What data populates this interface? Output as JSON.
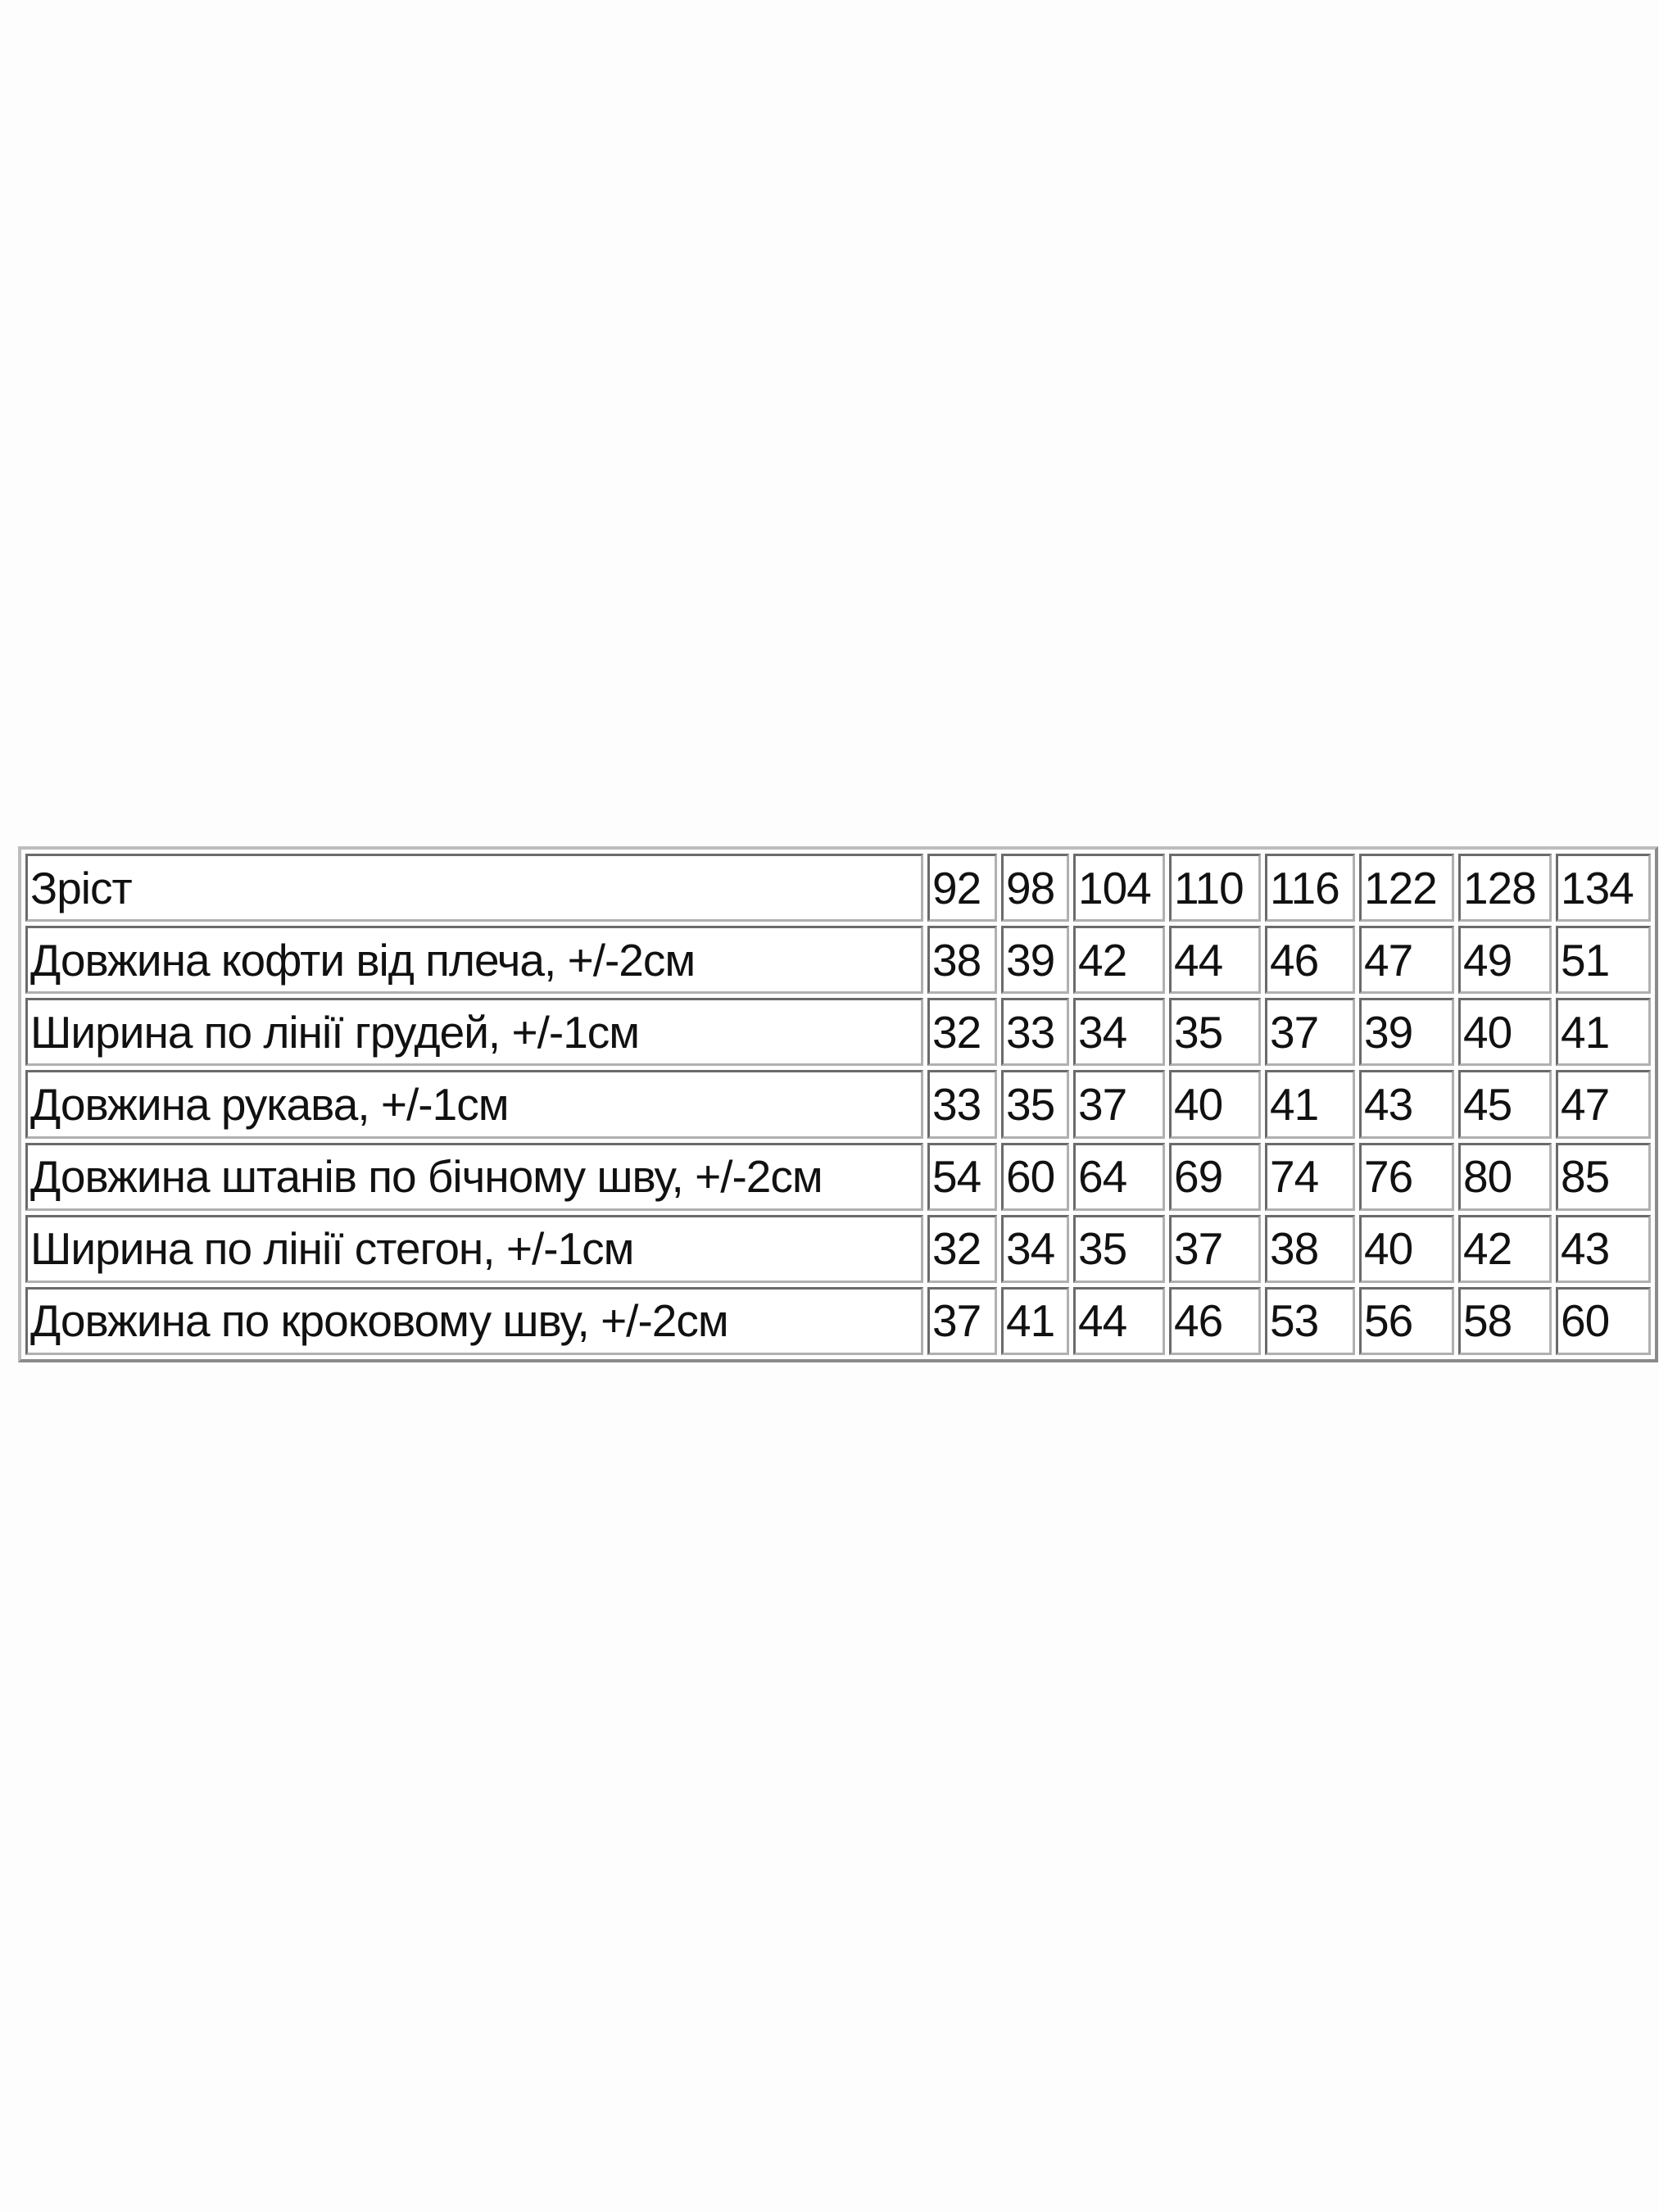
{
  "table": {
    "header": {
      "label": "Зріст",
      "sizes": [
        "92",
        "98",
        "104",
        "110",
        "116",
        "122",
        "128",
        "134"
      ]
    },
    "rows": [
      {
        "label": "Довжина кофти від плеча, +/-2см",
        "values": [
          "38",
          "39",
          "42",
          "44",
          "46",
          "47",
          "49",
          "51"
        ]
      },
      {
        "label": "Ширина по лінії грудей, +/-1см",
        "values": [
          "32",
          "33",
          "34",
          "35",
          "37",
          "39",
          "40",
          "41"
        ]
      },
      {
        "label": "Довжина рукава, +/-1см",
        "values": [
          "33",
          "35",
          "37",
          "40",
          "41",
          "43",
          "45",
          "47"
        ]
      },
      {
        "label": "Довжина штанів по бічному шву, +/-2см",
        "values": [
          "54",
          "60",
          "64",
          "69",
          "74",
          "76",
          "80",
          "85"
        ]
      },
      {
        "label": "Ширина по лінії стегон, +/-1см",
        "values": [
          "32",
          "34",
          "35",
          "37",
          "38",
          "40",
          "42",
          "43"
        ]
      },
      {
        "label": "Довжина по кроковому шву, +/-2см",
        "values": [
          "37",
          "41",
          "44",
          "46",
          "53",
          "56",
          "58",
          "60"
        ]
      }
    ]
  }
}
